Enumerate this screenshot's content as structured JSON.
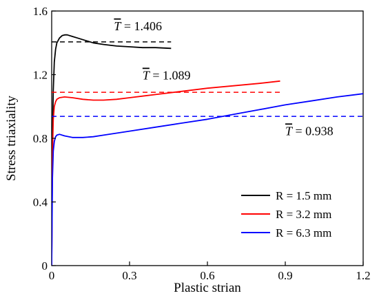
{
  "chart_data": {
    "type": "line",
    "xlabel": "Plastic strian",
    "ylabel": "Stress triaxiality",
    "xlim": [
      0,
      1.2
    ],
    "ylim": [
      0,
      1.6
    ],
    "xticks": [
      0.3,
      0.6,
      0.9,
      1.2
    ],
    "yticks": [
      0,
      0.4,
      0.8,
      1.2,
      1.6
    ],
    "grid": false,
    "legend_position": "bottom-right",
    "series": [
      {
        "name": "R = 1.5 mm",
        "color": "#000000",
        "x": [
          0,
          0.003,
          0.006,
          0.01,
          0.015,
          0.02,
          0.03,
          0.04,
          0.05,
          0.06,
          0.08,
          0.1,
          0.13,
          0.16,
          0.2,
          0.25,
          0.3,
          0.35,
          0.4,
          0.46
        ],
        "y": [
          0,
          0.8,
          1.1,
          1.28,
          1.36,
          1.4,
          1.43,
          1.445,
          1.45,
          1.45,
          1.44,
          1.43,
          1.415,
          1.4,
          1.39,
          1.38,
          1.375,
          1.37,
          1.37,
          1.365
        ]
      },
      {
        "name": "R = 3.2 mm",
        "color": "#ff0000",
        "x": [
          0,
          0.003,
          0.006,
          0.01,
          0.015,
          0.02,
          0.03,
          0.05,
          0.08,
          0.12,
          0.16,
          0.2,
          0.25,
          0.3,
          0.35,
          0.4,
          0.5,
          0.6,
          0.7,
          0.8,
          0.88
        ],
        "y": [
          0,
          0.7,
          0.92,
          1.0,
          1.03,
          1.045,
          1.055,
          1.06,
          1.055,
          1.045,
          1.04,
          1.04,
          1.045,
          1.055,
          1.065,
          1.075,
          1.095,
          1.115,
          1.13,
          1.145,
          1.16
        ]
      },
      {
        "name": "R = 6.3 mm",
        "color": "#0000ff",
        "x": [
          0,
          0.003,
          0.006,
          0.01,
          0.015,
          0.02,
          0.03,
          0.05,
          0.08,
          0.12,
          0.16,
          0.2,
          0.3,
          0.4,
          0.5,
          0.6,
          0.7,
          0.8,
          0.9,
          1.0,
          1.1,
          1.2
        ],
        "y": [
          0,
          0.55,
          0.72,
          0.78,
          0.81,
          0.82,
          0.825,
          0.815,
          0.805,
          0.805,
          0.81,
          0.82,
          0.845,
          0.87,
          0.895,
          0.92,
          0.95,
          0.98,
          1.01,
          1.035,
          1.06,
          1.08
        ]
      }
    ],
    "reference_lines": [
      {
        "series": "R = 1.5 mm",
        "color": "#000000",
        "y": 1.406,
        "x_range": [
          0,
          0.46
        ],
        "label": "= 1.406"
      },
      {
        "series": "R = 3.2 mm",
        "color": "#ff0000",
        "y": 1.089,
        "x_range": [
          0,
          0.88
        ],
        "label": "= 1.089"
      },
      {
        "series": "R = 6.3 mm",
        "color": "#0000ff",
        "y": 0.938,
        "x_range": [
          0,
          1.2
        ],
        "label": "= 0.938"
      }
    ],
    "annotations": [
      {
        "symbol": "T",
        "overline": true,
        "text": "= 1.406",
        "x": 0.24,
        "y": 1.48
      },
      {
        "symbol": "T",
        "overline": true,
        "text": "= 1.089",
        "x": 0.35,
        "y": 1.17
      },
      {
        "symbol": "T",
        "overline": true,
        "text": "= 0.938",
        "x": 0.9,
        "y": 0.82
      }
    ]
  }
}
